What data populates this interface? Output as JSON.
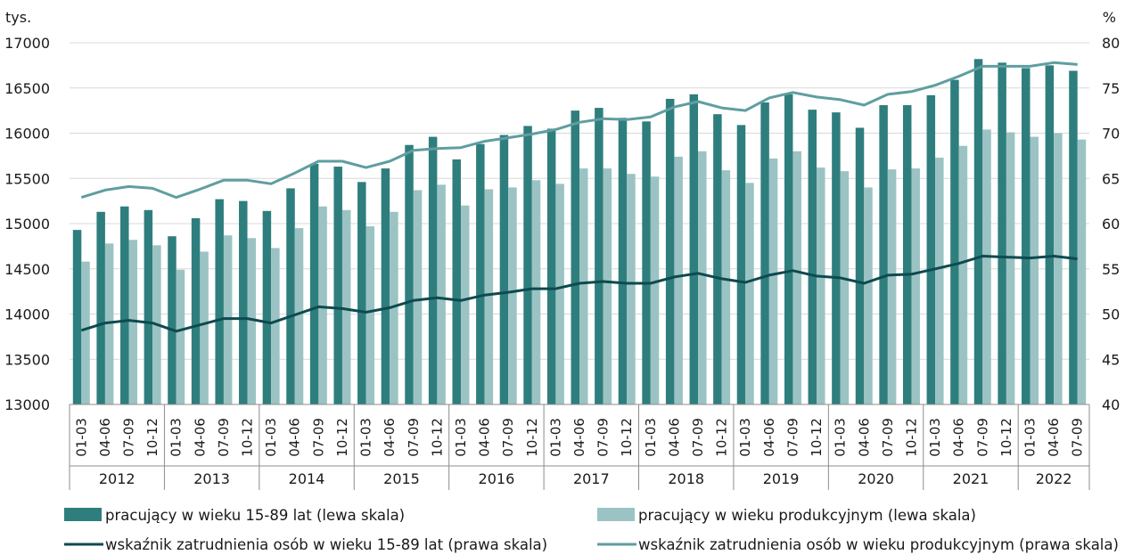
{
  "colors": {
    "bar_main": "#2f7e7e",
    "bar_light": "#9cc3c3",
    "line_main": "#0e4a4f",
    "line_light": "#5f9ea0",
    "grid": "#d9d9d9",
    "axis": "#8c8c8c"
  },
  "chart_data": {
    "type": "bar",
    "left_unit": "tys.",
    "right_unit": "%",
    "y_left": {
      "min": 13000,
      "max": 17000,
      "ticks": [
        "13000",
        "13500",
        "14000",
        "14500",
        "15000",
        "15500",
        "16000",
        "16500",
        "17000"
      ]
    },
    "y_right": {
      "min": 40,
      "max": 80,
      "ticks": [
        "40",
        "45",
        "50",
        "55",
        "60",
        "65",
        "70",
        "75",
        "80"
      ]
    },
    "grid": true,
    "legend_position": "bottom",
    "categories": [
      "01-03",
      "04-06",
      "07-09",
      "10-12",
      "01-03",
      "04-06",
      "07-09",
      "10-12",
      "01-03",
      "04-06",
      "07-09",
      "10-12",
      "01-03",
      "04-06",
      "07-09",
      "10-12",
      "01-03",
      "04-06",
      "07-09",
      "10-12",
      "01-03",
      "04-06",
      "07-09",
      "10-12",
      "01-03",
      "04-06",
      "07-09",
      "10-12",
      "01-03",
      "04-06",
      "07-09",
      "10-12",
      "01-03",
      "04-06",
      "07-09",
      "10-12",
      "01-03",
      "04-06",
      "07-09",
      "10-12",
      "01-03",
      "04-06",
      "07-09"
    ],
    "groups": [
      {
        "label": "2012",
        "count": 4
      },
      {
        "label": "2013",
        "count": 4
      },
      {
        "label": "2014",
        "count": 4
      },
      {
        "label": "2015",
        "count": 4
      },
      {
        "label": "2016",
        "count": 4
      },
      {
        "label": "2017",
        "count": 4
      },
      {
        "label": "2018",
        "count": 4
      },
      {
        "label": "2019",
        "count": 4
      },
      {
        "label": "2020",
        "count": 4
      },
      {
        "label": "2021",
        "count": 4
      },
      {
        "label": "2022",
        "count": 3
      }
    ],
    "series": [
      {
        "name": "pracujący w wieku 15-89 lat (lewa skala)",
        "kind": "bar",
        "axis": "left",
        "color": "#2f7e7e",
        "values": [
          14930,
          15130,
          15190,
          15150,
          14860,
          15060,
          15270,
          15250,
          15140,
          15390,
          15660,
          15630,
          15460,
          15610,
          15870,
          15960,
          15710,
          15880,
          15980,
          16080,
          16050,
          16250,
          16280,
          16170,
          16130,
          16380,
          16430,
          16210,
          16090,
          16340,
          16430,
          16260,
          16230,
          16060,
          16310,
          16310,
          16420,
          16590,
          16820,
          16780,
          16720,
          16750,
          16690
        ]
      },
      {
        "name": "pracujący w wieku produkcyjnym (lewa skala)",
        "kind": "bar",
        "axis": "left",
        "color": "#9cc3c3",
        "values": [
          14580,
          14780,
          14820,
          14760,
          14490,
          14690,
          14870,
          14840,
          14730,
          14950,
          15190,
          15150,
          14970,
          15130,
          15370,
          15430,
          15200,
          15380,
          15400,
          15480,
          15440,
          15610,
          15610,
          15550,
          15520,
          15740,
          15800,
          15590,
          15450,
          15720,
          15800,
          15620,
          15580,
          15400,
          15600,
          15610,
          15730,
          15860,
          16040,
          16010,
          15960,
          16000,
          15930
        ]
      },
      {
        "name": "wskaźnik zatrudnienia osób w wieku 15-89 lat (prawa skala)",
        "kind": "line",
        "axis": "right",
        "color": "#0e4a4f",
        "values": [
          48.2,
          49.0,
          49.3,
          49.0,
          48.1,
          48.8,
          49.5,
          49.5,
          49.0,
          49.9,
          50.8,
          50.6,
          50.2,
          50.7,
          51.5,
          51.8,
          51.5,
          52.1,
          52.4,
          52.8,
          52.8,
          53.4,
          53.6,
          53.4,
          53.4,
          54.1,
          54.5,
          53.9,
          53.5,
          54.3,
          54.8,
          54.2,
          54.0,
          53.4,
          54.3,
          54.4,
          55.0,
          55.6,
          56.4,
          56.3,
          56.2,
          56.4,
          56.1
        ]
      },
      {
        "name": "wskaźnik zatrudnienia osób w wieku produkcyjnym (prawa skala)",
        "kind": "line",
        "axis": "right",
        "color": "#5f9ea0",
        "values": [
          62.9,
          63.7,
          64.1,
          63.9,
          62.9,
          63.8,
          64.8,
          64.8,
          64.4,
          65.6,
          66.9,
          66.9,
          66.2,
          66.9,
          68.1,
          68.3,
          68.4,
          69.1,
          69.5,
          69.9,
          70.4,
          71.2,
          71.6,
          71.5,
          71.8,
          72.9,
          73.5,
          72.8,
          72.5,
          73.9,
          74.5,
          74.0,
          73.7,
          73.1,
          74.3,
          74.6,
          75.3,
          76.3,
          77.4,
          77.4,
          77.4,
          77.8,
          77.6
        ]
      }
    ]
  }
}
